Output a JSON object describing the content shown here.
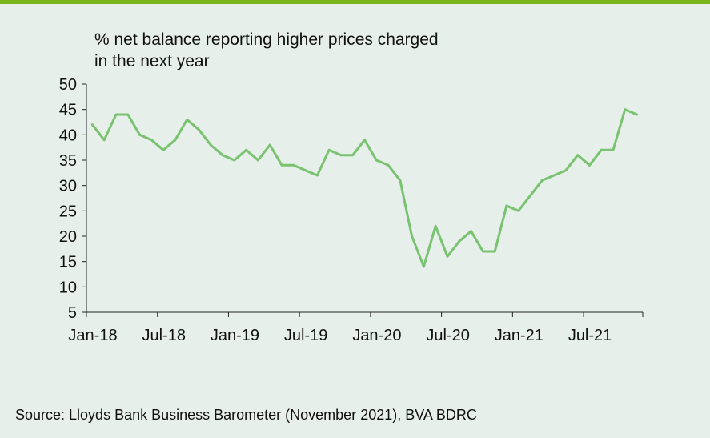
{
  "colors": {
    "background": "#e6efea",
    "accent_rule": "#7ab51d",
    "series_line": "#79c270",
    "axis": "#222222"
  },
  "chart_data": {
    "type": "line",
    "title_lines": [
      "% net balance reporting higher prices charged",
      "in the next year"
    ],
    "xlabel": "",
    "ylabel": "",
    "ylim": [
      5,
      50
    ],
    "yticks": [
      5,
      10,
      15,
      20,
      25,
      30,
      35,
      40,
      45,
      50
    ],
    "xtick_labels": [
      "Jan-18",
      "Jul-18",
      "Jan-19",
      "Jul-19",
      "Jan-20",
      "Jul-20",
      "Jan-21",
      "Jul-21"
    ],
    "x": [
      "Jan-18",
      "Feb-18",
      "Mar-18",
      "Apr-18",
      "May-18",
      "Jun-18",
      "Jul-18",
      "Aug-18",
      "Sep-18",
      "Oct-18",
      "Nov-18",
      "Dec-18",
      "Jan-19",
      "Feb-19",
      "Mar-19",
      "Apr-19",
      "May-19",
      "Jun-19",
      "Jul-19",
      "Aug-19",
      "Sep-19",
      "Oct-19",
      "Nov-19",
      "Dec-19",
      "Jan-20",
      "Feb-20",
      "Mar-20",
      "Apr-20",
      "May-20",
      "Jun-20",
      "Jul-20",
      "Aug-20",
      "Sep-20",
      "Oct-20",
      "Nov-20",
      "Dec-20",
      "Jan-21",
      "Feb-21",
      "Mar-21",
      "Apr-21",
      "May-21",
      "Jun-21",
      "Jul-21",
      "Aug-21",
      "Sep-21",
      "Oct-21",
      "Nov-21"
    ],
    "series": [
      {
        "values": [
          42,
          39,
          44,
          44,
          40,
          39,
          37,
          39,
          43,
          41,
          38,
          36,
          35,
          37,
          35,
          38,
          34,
          34,
          33,
          32,
          37,
          36,
          36,
          39,
          35,
          34,
          31,
          20,
          14,
          22,
          16,
          19,
          21,
          17,
          17,
          26,
          25,
          28,
          31,
          32,
          33,
          36,
          34,
          37,
          37,
          45,
          44
        ]
      }
    ],
    "grid": false,
    "legend": "none"
  },
  "source": "Source: Lloyds Bank Business Barometer (November 2021), BVA BDRC"
}
